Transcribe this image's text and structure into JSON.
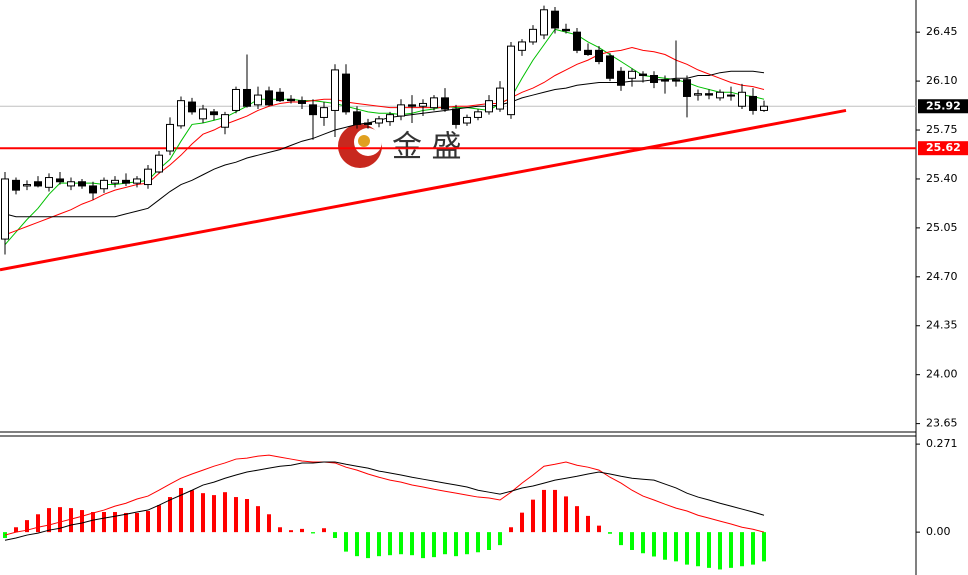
{
  "chart_data": [
    {
      "type": "candlestick",
      "watermark": "金 盛",
      "categories": [
        null,
        null,
        null,
        null,
        null,
        null,
        null,
        null,
        null,
        null,
        null,
        null,
        null,
        null,
        null,
        null,
        null,
        null,
        null,
        null,
        null,
        null,
        null,
        null,
        null,
        null,
        null,
        null,
        null,
        null,
        null,
        null,
        null,
        null,
        null,
        null,
        null,
        null,
        null,
        null,
        null,
        null,
        null,
        null,
        null,
        null,
        null,
        null,
        null,
        null,
        null,
        null,
        null,
        null,
        null,
        null,
        null,
        null,
        null,
        null,
        null,
        null,
        null,
        null,
        null,
        null,
        null,
        null,
        null,
        null
      ],
      "open": [
        24.97,
        25.39,
        25.35,
        25.38,
        25.34,
        25.4,
        25.35,
        25.38,
        25.35,
        25.33,
        25.37,
        25.39,
        25.37,
        25.36,
        25.45,
        25.6,
        25.78,
        25.95,
        25.83,
        25.88,
        25.77,
        25.89,
        26.04,
        25.93,
        26.03,
        26.02,
        25.97,
        25.96,
        25.93,
        25.84,
        25.89,
        26.15,
        25.88,
        25.8,
        25.8,
        25.81,
        25.85,
        25.93,
        25.92,
        25.91,
        25.98,
        25.9,
        25.8,
        25.84,
        25.88,
        25.9,
        25.86,
        26.32,
        26.38,
        26.43,
        26.6,
        26.47,
        26.45,
        26.32,
        26.32,
        26.28,
        26.17,
        26.12,
        26.15,
        26.14,
        26.11,
        26.11,
        26.11,
        26.0,
        26.01,
        25.98,
        26.0,
        25.92,
        25.99,
        25.89
      ],
      "high": [
        25.45,
        25.41,
        25.39,
        25.42,
        25.44,
        25.45,
        25.41,
        25.4,
        25.38,
        25.41,
        25.42,
        25.44,
        25.42,
        25.5,
        25.6,
        25.84,
        25.99,
        25.98,
        25.93,
        25.9,
        25.88,
        26.06,
        26.29,
        26.06,
        26.06,
        26.05,
        26.0,
        25.99,
        25.97,
        25.95,
        26.22,
        26.22,
        25.92,
        25.83,
        25.85,
        25.88,
        25.97,
        26.0,
        25.97,
        26.0,
        26.05,
        25.93,
        25.86,
        25.9,
        26.0,
        26.1,
        26.38,
        26.4,
        26.5,
        26.64,
        26.63,
        26.51,
        26.48,
        26.37,
        26.35,
        26.3,
        26.2,
        26.19,
        26.17,
        26.17,
        26.14,
        26.39,
        26.14,
        26.04,
        26.04,
        26.04,
        26.06,
        26.08,
        26.05,
        25.96
      ],
      "low": [
        24.86,
        25.29,
        25.32,
        25.34,
        25.31,
        25.36,
        25.32,
        25.33,
        25.25,
        25.3,
        25.34,
        25.35,
        25.34,
        25.33,
        25.44,
        25.57,
        25.76,
        25.86,
        25.8,
        25.82,
        25.72,
        25.87,
        25.91,
        25.9,
        25.92,
        25.95,
        25.94,
        25.9,
        25.68,
        25.78,
        25.7,
        25.86,
        25.76,
        25.76,
        25.77,
        25.78,
        25.82,
        25.8,
        25.85,
        25.89,
        25.88,
        25.76,
        25.78,
        25.82,
        25.86,
        25.88,
        25.83,
        26.28,
        26.36,
        26.4,
        26.44,
        26.44,
        26.3,
        26.28,
        26.22,
        26.1,
        26.03,
        26.06,
        26.09,
        26.05,
        26.01,
        26.06,
        25.84,
        25.96,
        25.97,
        25.96,
        25.96,
        25.9,
        25.86,
        25.88
      ],
      "close": [
        25.4,
        25.32,
        25.36,
        25.35,
        25.41,
        25.38,
        25.38,
        25.35,
        25.3,
        25.39,
        25.39,
        25.37,
        25.4,
        25.47,
        25.57,
        25.79,
        25.96,
        25.88,
        25.9,
        25.86,
        25.86,
        26.04,
        25.92,
        26.0,
        25.93,
        25.96,
        25.96,
        25.94,
        25.86,
        25.91,
        26.18,
        25.88,
        25.79,
        25.79,
        25.83,
        25.86,
        25.93,
        25.92,
        25.94,
        25.98,
        25.9,
        25.79,
        25.84,
        25.88,
        25.96,
        26.05,
        26.35,
        26.38,
        26.47,
        26.61,
        26.48,
        26.46,
        26.32,
        26.29,
        26.24,
        26.12,
        26.07,
        26.17,
        26.14,
        26.09,
        26.1,
        26.1,
        25.99,
        26.01,
        26.0,
        26.02,
        26.0,
        26.02,
        25.89,
        25.92
      ],
      "up_color": "#ffffff",
      "down_color": "#000000",
      "outline_color": "#000000",
      "series": [
        {
          "color": "#00c000",
          "values": [
            24.93,
            25.02,
            25.11,
            25.19,
            25.29,
            25.37,
            25.37,
            25.37,
            25.37,
            25.36,
            25.36,
            25.37,
            25.38,
            25.39,
            25.47,
            25.54,
            25.67,
            25.79,
            25.8,
            25.82,
            25.84,
            25.88,
            25.92,
            25.97,
            25.97,
            25.97,
            25.97,
            25.96,
            25.96,
            25.95,
            25.94,
            25.92,
            25.9,
            25.88,
            25.87,
            25.87,
            25.86,
            25.87,
            25.89,
            25.9,
            25.92,
            25.91,
            25.91,
            25.9,
            25.89,
            25.94,
            25.98,
            26.12,
            26.25,
            26.36,
            26.47,
            26.45,
            26.43,
            26.38,
            26.34,
            26.29,
            26.24,
            26.19,
            26.14,
            26.13,
            26.12,
            26.11,
            26.09,
            26.06,
            26.04,
            26.02,
            26.02,
            26.0,
            25.99,
            25.97
          ]
        },
        {
          "color": "#ff0000",
          "values": [
            25.0,
            25.03,
            25.06,
            25.09,
            25.12,
            25.15,
            25.18,
            25.22,
            25.25,
            25.29,
            25.32,
            25.34,
            25.36,
            25.37,
            25.44,
            25.5,
            25.57,
            25.65,
            25.72,
            25.75,
            25.79,
            25.82,
            25.85,
            25.89,
            25.92,
            25.94,
            25.95,
            25.95,
            25.96,
            25.97,
            25.97,
            25.95,
            25.94,
            25.93,
            25.92,
            25.91,
            25.91,
            25.91,
            25.91,
            25.91,
            25.91,
            25.92,
            25.92,
            25.93,
            25.94,
            25.94,
            25.98,
            26.02,
            26.05,
            26.09,
            26.14,
            26.18,
            26.22,
            26.25,
            26.29,
            26.31,
            26.32,
            26.34,
            26.32,
            26.31,
            26.29,
            26.25,
            26.22,
            26.18,
            26.15,
            26.12,
            26.09,
            26.07,
            26.06,
            26.04
          ]
        },
        {
          "color": "#000000",
          "values": [
            25.15,
            25.13,
            25.13,
            25.13,
            25.13,
            25.13,
            25.13,
            25.13,
            25.13,
            25.13,
            25.13,
            25.15,
            25.17,
            25.19,
            25.25,
            25.31,
            25.36,
            25.39,
            25.43,
            25.47,
            25.5,
            25.52,
            25.55,
            25.57,
            25.59,
            25.61,
            25.64,
            25.67,
            25.69,
            25.72,
            25.75,
            25.77,
            25.79,
            25.8,
            25.82,
            25.84,
            25.85,
            25.86,
            25.87,
            25.88,
            25.89,
            25.9,
            25.91,
            25.92,
            25.92,
            25.93,
            25.95,
            25.98,
            26.0,
            26.02,
            26.04,
            26.05,
            26.07,
            26.08,
            26.09,
            26.09,
            26.09,
            26.1,
            26.1,
            26.11,
            26.11,
            26.12,
            26.12,
            26.14,
            26.14,
            26.16,
            26.17,
            26.17,
            26.17,
            26.16
          ]
        }
      ],
      "hlines": [
        {
          "value": 25.92,
          "label": "25.92",
          "color": "#c0c0c0",
          "label_bg": "#000000"
        },
        {
          "value": 25.62,
          "label": "25.62",
          "color": "#ff0000",
          "label_bg": "#ff0000"
        }
      ],
      "trendline": {
        "values": [
          24.75,
          25.89
        ],
        "color": "#ff0000"
      },
      "ylim": [
        23.59,
        26.68
      ],
      "yticks": [
        26.45,
        {
          "value": 26.1,
          "label": "26.10"
        },
        25.75,
        {
          "value": 25.4,
          "label": "25.40"
        },
        25.05,
        {
          "value": 24.7,
          "label": "24.70"
        },
        24.35,
        {
          "value": 24.0,
          "label": "24.00"
        },
        23.65
      ]
    },
    {
      "type": "macd",
      "categories": [
        null,
        null,
        null,
        null,
        null,
        null,
        null,
        null,
        null,
        null,
        null,
        null,
        null,
        null,
        null,
        null,
        null,
        null,
        null,
        null,
        null,
        null,
        null,
        null,
        null,
        null,
        null,
        null,
        null,
        null,
        null,
        null,
        null,
        null,
        null,
        null,
        null,
        null,
        null,
        null,
        null,
        null,
        null,
        null,
        null,
        null,
        null,
        null,
        null,
        null,
        null,
        null,
        null,
        null,
        null,
        null,
        null,
        null,
        null,
        null,
        null,
        null,
        null,
        null,
        null,
        null,
        null,
        null,
        null,
        null
      ],
      "values": [
        -0.018,
        0.015,
        0.037,
        0.055,
        0.074,
        0.077,
        0.074,
        0.068,
        0.062,
        0.062,
        0.062,
        0.059,
        0.059,
        0.065,
        0.083,
        0.108,
        0.136,
        0.129,
        0.12,
        0.114,
        0.123,
        0.108,
        0.102,
        0.08,
        0.055,
        0.015,
        0.006,
        0.01,
        -0.004,
        0.012,
        -0.018,
        -0.06,
        -0.074,
        -0.08,
        -0.074,
        -0.071,
        -0.068,
        -0.071,
        -0.08,
        -0.077,
        -0.068,
        -0.074,
        -0.068,
        -0.062,
        -0.055,
        -0.04,
        0.015,
        0.06,
        0.1,
        0.13,
        0.13,
        0.11,
        0.08,
        0.05,
        0.02,
        -0.005,
        -0.04,
        -0.055,
        -0.065,
        -0.075,
        -0.085,
        -0.09,
        -0.1,
        -0.105,
        -0.11,
        -0.115,
        -0.11,
        -0.105,
        -0.1,
        -0.09
      ],
      "up_color": "#ff0000",
      "down_color": "#00ff00",
      "series": [
        {
          "color": "#ff0000",
          "values": [
            -0.009,
            0,
            0.006,
            0.015,
            0.022,
            0.031,
            0.04,
            0.049,
            0.059,
            0.068,
            0.08,
            0.089,
            0.102,
            0.111,
            0.129,
            0.148,
            0.166,
            0.179,
            0.191,
            0.203,
            0.213,
            0.225,
            0.228,
            0.234,
            0.237,
            0.231,
            0.225,
            0.219,
            0.216,
            0.216,
            0.213,
            0.2,
            0.191,
            0.179,
            0.169,
            0.16,
            0.154,
            0.145,
            0.139,
            0.132,
            0.126,
            0.12,
            0.114,
            0.108,
            0.105,
            0.099,
            0.123,
            0.151,
            0.176,
            0.203,
            0.209,
            0.216,
            0.206,
            0.2,
            0.191,
            0.169,
            0.151,
            0.129,
            0.111,
            0.099,
            0.086,
            0.074,
            0.065,
            0.052,
            0.043,
            0.034,
            0.025,
            0.015,
            0.009,
            0
          ]
        },
        {
          "color": "#000000",
          "values": [
            -0.025,
            -0.018,
            -0.009,
            -0.003,
            0.006,
            0.012,
            0.022,
            0.028,
            0.037,
            0.043,
            0.049,
            0.055,
            0.062,
            0.068,
            0.083,
            0.099,
            0.114,
            0.129,
            0.145,
            0.154,
            0.166,
            0.176,
            0.185,
            0.191,
            0.197,
            0.203,
            0.206,
            0.213,
            0.213,
            0.216,
            0.216,
            0.209,
            0.203,
            0.197,
            0.188,
            0.182,
            0.176,
            0.169,
            0.163,
            0.157,
            0.151,
            0.145,
            0.139,
            0.129,
            0.123,
            0.117,
            0.126,
            0.136,
            0.142,
            0.151,
            0.16,
            0.166,
            0.172,
            0.179,
            0.185,
            0.179,
            0.172,
            0.166,
            0.163,
            0.16,
            0.148,
            0.136,
            0.12,
            0.108,
            0.099,
            0.089,
            0.08,
            0.071,
            0.062,
            0.052
          ]
        }
      ],
      "ylim": [
        -0.132,
        0.296
      ],
      "yticks": [
        0.271,
        {
          "value": 0,
          "label": "0.00"
        }
      ]
    }
  ]
}
